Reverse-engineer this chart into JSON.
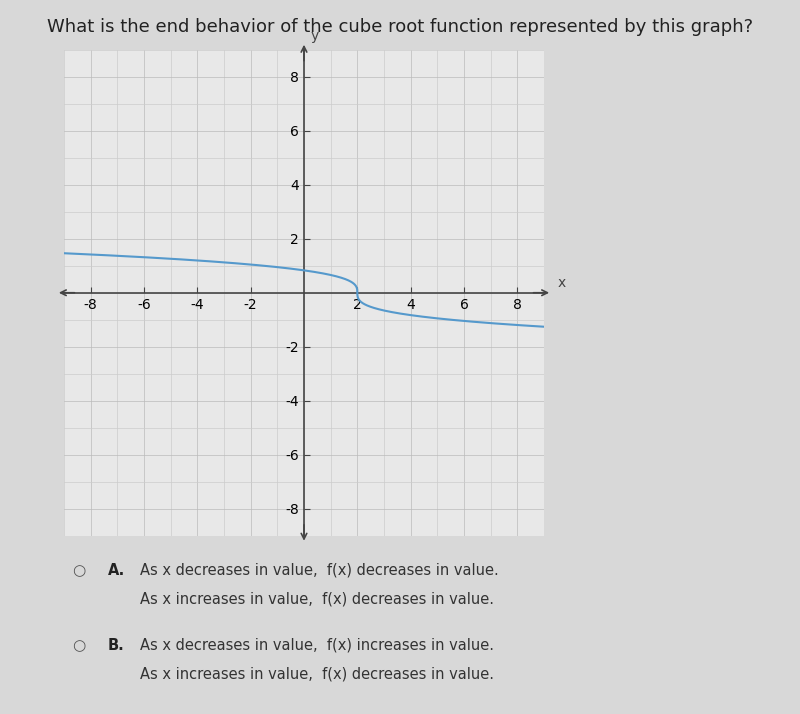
{
  "title": "What is the end behavior of the cube root function represented by this graph?",
  "title_fontsize": 13,
  "title_color": "#222222",
  "bg_color": "#d8d8d8",
  "plot_bg_color": "#e8e8e8",
  "curve_color": "#5599cc",
  "curve_linewidth": 1.5,
  "xlim": [
    -9,
    9
  ],
  "ylim": [
    -9,
    9
  ],
  "xticks": [
    -8,
    -6,
    -4,
    -2,
    2,
    4,
    6,
    8
  ],
  "yticks": [
    -8,
    -6,
    -4,
    -2,
    2,
    4,
    6,
    8
  ],
  "tick_fontsize": 9,
  "grid_color": "#bbbbbb",
  "minor_grid_color": "#cccccc",
  "axis_color": "#444444",
  "option_A_label": "A.",
  "option_A_line1": "As x decreases in value,  f(x) decreases in value.",
  "option_A_line2": "As x increases in value,  f(x) decreases in value.",
  "option_B_label": "B.",
  "option_B_line1": "As x decreases in value,  f(x) increases in value.",
  "option_B_line2": "As x increases in value,  f(x) decreases in value.",
  "option_fontsize": 10.5,
  "curve_x_shift": 2,
  "curve_scale": 3.5
}
